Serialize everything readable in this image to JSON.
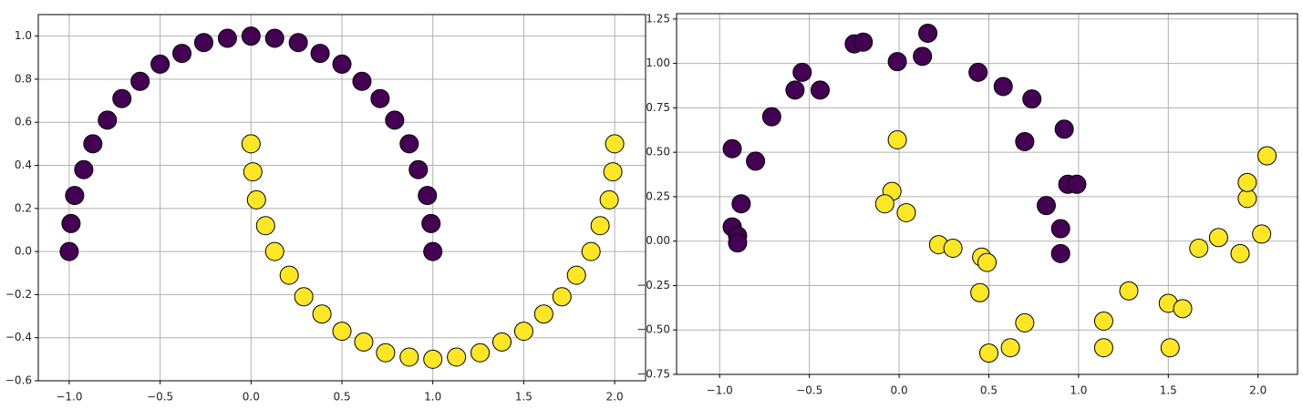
{
  "chart_data": [
    {
      "type": "scatter",
      "grid": true,
      "xlim": [
        -1.17,
        2.17
      ],
      "ylim": [
        -0.6,
        1.1
      ],
      "xticks": [
        {
          "value": -1,
          "label": "−1.0"
        },
        {
          "value": -0.5,
          "label": "−0.5"
        },
        {
          "value": 0,
          "label": "0.0"
        },
        0.5,
        {
          "value": 1,
          "label": "1.0"
        },
        1.5,
        {
          "value": 2,
          "label": "2.0"
        }
      ],
      "yticks": [
        {
          "value": -0.6,
          "label": "−0.6"
        },
        {
          "value": -0.4,
          "label": "−0.4"
        },
        {
          "value": -0.2,
          "label": "−0.2"
        },
        {
          "value": 0,
          "label": "0.0"
        },
        0.2,
        0.4,
        0.6,
        0.8,
        {
          "value": 1,
          "label": "1.0"
        }
      ],
      "series": [
        {
          "color": "#440154",
          "x": [
            -1,
            -0.99,
            -0.97,
            -0.92,
            -0.87,
            -0.79,
            -0.71,
            -0.61,
            -0.5,
            -0.38,
            -0.26,
            -0.13,
            0,
            0.13,
            0.26,
            0.38,
            0.5,
            0.61,
            0.71,
            0.79,
            0.87,
            0.92,
            0.97,
            0.99,
            1
          ],
          "values": [
            0,
            0.13,
            0.26,
            0.38,
            0.5,
            0.61,
            0.71,
            0.79,
            0.87,
            0.92,
            0.97,
            0.99,
            1,
            0.99,
            0.97,
            0.92,
            0.87,
            0.79,
            0.71,
            0.61,
            0.5,
            0.38,
            0.26,
            0.13,
            0
          ]
        },
        {
          "color": "#fde725",
          "x": [
            0,
            0.01,
            0.03,
            0.08,
            0.13,
            0.21,
            0.29,
            0.39,
            0.5,
            0.62,
            0.74,
            0.87,
            1,
            1.13,
            1.26,
            1.38,
            1.5,
            1.61,
            1.71,
            1.79,
            1.87,
            1.92,
            1.97,
            1.99,
            2
          ],
          "values": [
            0.5,
            0.37,
            0.24,
            0.12,
            0,
            -0.11,
            -0.21,
            -0.29,
            -0.37,
            -0.42,
            -0.47,
            -0.49,
            -0.5,
            -0.49,
            -0.47,
            -0.42,
            -0.37,
            -0.29,
            -0.21,
            -0.11,
            0,
            0.12,
            0.24,
            0.37,
            0.5
          ]
        }
      ]
    },
    {
      "type": "scatter",
      "grid": true,
      "xlim": [
        -1.24,
        2.22
      ],
      "ylim": [
        -0.75,
        1.28
      ],
      "xticks": [
        {
          "value": -1,
          "label": "−1.0"
        },
        {
          "value": -0.5,
          "label": "−0.5"
        },
        {
          "value": 0,
          "label": "0.0"
        },
        0.5,
        {
          "value": 1,
          "label": "1.0"
        },
        1.5,
        {
          "value": 2,
          "label": "2.0"
        }
      ],
      "yticks": [
        {
          "value": -0.75,
          "label": "−0.75"
        },
        {
          "value": -0.5,
          "label": "−0.50"
        },
        {
          "value": -0.25,
          "label": "−0.25"
        },
        {
          "value": 0,
          "label": "0.00"
        },
        0.25,
        {
          "value": 0.5,
          "label": "0.50"
        },
        0.75,
        {
          "value": 1,
          "label": "1.00"
        },
        1.25
      ],
      "series": [
        {
          "color": "#440154",
          "x": [
            -0.93,
            -0.88,
            -0.93,
            -0.9,
            -0.9,
            -0.8,
            -0.71,
            -0.58,
            -0.54,
            -0.44,
            -0.25,
            -0.2,
            -0.01,
            0.13,
            0.16,
            0.44,
            0.58,
            0.7,
            0.74,
            0.82,
            0.9,
            0.9,
            0.92,
            0.94,
            0.99
          ],
          "values": [
            0.52,
            0.21,
            0.08,
            0.03,
            -0.01,
            0.45,
            0.7,
            0.85,
            0.95,
            0.85,
            1.11,
            1.12,
            1.01,
            1.04,
            1.17,
            0.95,
            0.87,
            0.56,
            0.8,
            0.2,
            0.07,
            -0.07,
            0.63,
            0.32,
            0.32
          ]
        },
        {
          "color": "#fde725",
          "x": [
            -0.01,
            -0.04,
            -0.08,
            0.04,
            0.22,
            0.3,
            0.46,
            0.49,
            0.45,
            0.5,
            0.62,
            0.7,
            1.14,
            1.14,
            1.28,
            1.5,
            1.51,
            1.58,
            1.67,
            1.78,
            1.9,
            1.94,
            1.94,
            2.02,
            2.05
          ],
          "values": [
            0.57,
            0.28,
            0.21,
            0.16,
            -0.02,
            -0.04,
            -0.09,
            -0.12,
            -0.29,
            -0.63,
            -0.6,
            -0.46,
            -0.45,
            -0.6,
            -0.28,
            -0.35,
            -0.6,
            -0.38,
            -0.04,
            0.02,
            -0.07,
            0.24,
            0.33,
            0.04,
            0.48
          ]
        }
      ]
    }
  ]
}
